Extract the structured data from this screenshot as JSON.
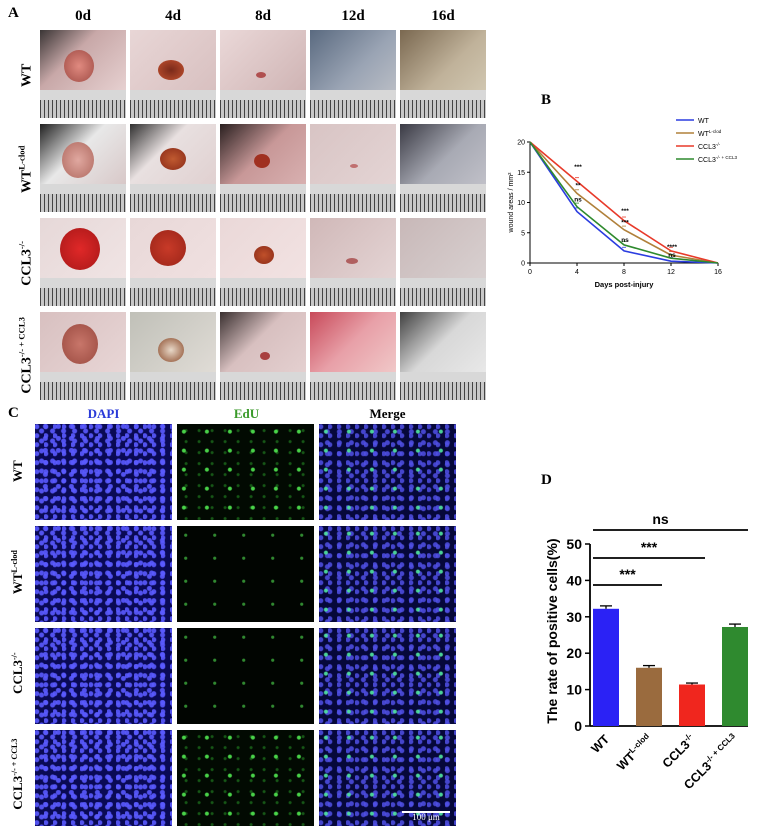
{
  "panels": {
    "a": "A",
    "b": "B",
    "c": "C",
    "d": "D"
  },
  "panelA": {
    "days": [
      "0d",
      "4d",
      "8d",
      "12d",
      "16d"
    ],
    "rows": [
      {
        "base": "WT",
        "sup": ""
      },
      {
        "base": "WT",
        "sup": "L-clod"
      },
      {
        "base": "CCL3",
        "sup": "-/-"
      },
      {
        "base": "CCL3",
        "sup": "-/- + CCL3"
      }
    ]
  },
  "panelC": {
    "channels": [
      "DAPI",
      "EdU",
      "Merge"
    ],
    "rows": [
      {
        "base": "WT",
        "sup": ""
      },
      {
        "base": "WT",
        "sup": "L-clod"
      },
      {
        "base": "CCL3",
        "sup": "-/-"
      },
      {
        "base": "CCL3",
        "sup": "-/- + CCL3"
      }
    ],
    "scale_bar": "100 μm"
  },
  "colors": {
    "blue": "#2b3de0",
    "brown": "#b0803a",
    "red": "#e83a2a",
    "green": "#2e8a2e",
    "bar_blue": "#2b22f5",
    "bar_brown": "#9a6b3e",
    "bar_red": "#f0261e",
    "bar_green": "#2f8a2f"
  },
  "chart_data": [
    {
      "type": "line",
      "panel": "B",
      "xlabel": "Days post-injury",
      "ylabel": "wound areas / mm²",
      "xlim": [
        0,
        16
      ],
      "ylim": [
        0,
        20
      ],
      "xticks": [
        "0",
        "4",
        "8",
        "12",
        "16"
      ],
      "yticks": [
        "0",
        "5",
        "10",
        "15",
        "20"
      ],
      "x": [
        0,
        4,
        8,
        12,
        16
      ],
      "series": [
        {
          "name": "WT",
          "sup": "",
          "values": [
            20,
            8.5,
            2.0,
            0.3,
            0
          ]
        },
        {
          "name": "WT",
          "sup": "L-clod",
          "values": [
            20,
            11.5,
            5.5,
            1.3,
            0
          ]
        },
        {
          "name": "CCL3",
          "sup": "-/-",
          "values": [
            20,
            13.5,
            7.0,
            2.0,
            0
          ]
        },
        {
          "name": "CCL3",
          "sup": "-/- + CCL3",
          "values": [
            20,
            9.3,
            3.0,
            0.8,
            0
          ]
        }
      ],
      "annotations": [
        {
          "x": 4,
          "y": 15.5,
          "text": "***"
        },
        {
          "x": 4,
          "y": 12.5,
          "text": "**"
        },
        {
          "x": 4,
          "y": 10.2,
          "text": "ns"
        },
        {
          "x": 8,
          "y": 8.3,
          "text": "***"
        },
        {
          "x": 8,
          "y": 6.4,
          "text": "***"
        },
        {
          "x": 8,
          "y": 3.5,
          "text": "ns"
        },
        {
          "x": 12,
          "y": 2.3,
          "text": "****"
        },
        {
          "x": 12,
          "y": 1.0,
          "text": "ns"
        }
      ],
      "legend": "top-right"
    },
    {
      "type": "bar",
      "panel": "D",
      "ylabel": "The rate of positive cells(%)",
      "ylim": [
        0,
        50
      ],
      "yticks": [
        "0",
        "10",
        "20",
        "30",
        "40",
        "50"
      ],
      "categories": [
        {
          "base": "WT",
          "sup": ""
        },
        {
          "base": "WT",
          "sup": "L-clod"
        },
        {
          "base": "CCL3",
          "sup": "-/-"
        },
        {
          "base": "CCL3",
          "sup": "-/- + CCL3"
        }
      ],
      "values": [
        32.2,
        16.0,
        11.4,
        27.2
      ],
      "errors": [
        0.8,
        0.6,
        0.4,
        0.8
      ],
      "significance": [
        {
          "from": 0,
          "to": 1,
          "text": "***"
        },
        {
          "from": 0,
          "to": 2,
          "text": "***"
        },
        {
          "from": 0,
          "to": 3,
          "text": "ns"
        }
      ]
    }
  ]
}
